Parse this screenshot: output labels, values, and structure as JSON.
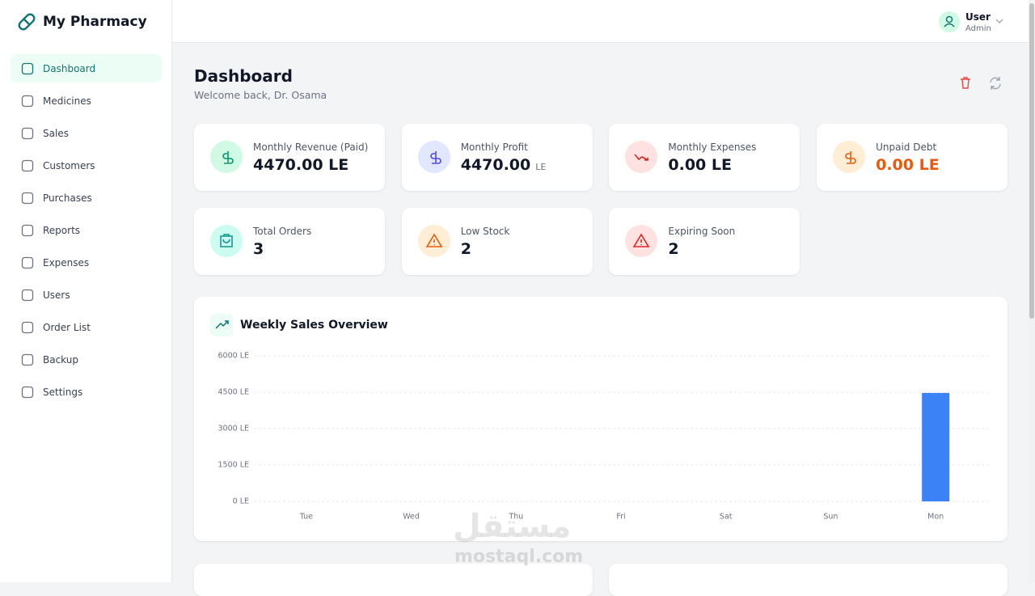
{
  "sidebar": {
    "brand": "My Pharmacy",
    "nav": [
      "Dashboard",
      "Medicines",
      "Sales",
      "Customers",
      "Purchases",
      "Reports",
      "Expenses",
      "Users",
      "Order List",
      "Backup",
      "Settings"
    ]
  },
  "header": {
    "user_name": "User",
    "user_role": "Admin"
  },
  "page": {
    "title": "Dashboard",
    "subtitle": "Welcome back, Dr. Osama"
  },
  "stats": [
    {
      "label": "Monthly Revenue (Paid)",
      "value": "4470.00 LE"
    },
    {
      "label": "Monthly Profit",
      "value": "4470.00",
      "unit": "LE"
    },
    {
      "label": "Monthly Expenses",
      "value": "0.00 LE"
    },
    {
      "label": "Unpaid Debt",
      "value": "0.00 LE"
    },
    {
      "label": "Total Orders",
      "value": 3
    },
    {
      "label": "Low Stock",
      "value": 2
    },
    {
      "label": "Expiring Soon",
      "value": 2
    }
  ],
  "chart_data": {
    "type": "bar",
    "title": "Weekly Sales Overview",
    "categories": [
      "Tue",
      "Wed",
      "Thu",
      "Fri",
      "Sat",
      "Sun",
      "Mon"
    ],
    "values": [
      0,
      0,
      0,
      0,
      0,
      0,
      4470
    ],
    "color": "#3b82f6",
    "ylim": [
      0,
      6000
    ],
    "yticks": [
      {
        "value": 0,
        "label": "0 LE"
      },
      {
        "value": 1500,
        "label": "1500 LE"
      },
      {
        "value": 3000,
        "label": "3000 LE"
      },
      {
        "value": 4500,
        "label": "4500 LE"
      },
      {
        "value": 6000,
        "label": "6000 LE"
      }
    ],
    "grid": true
  },
  "watermark": {
    "arabic": "مستقل",
    "latin": "mostaql.com"
  }
}
